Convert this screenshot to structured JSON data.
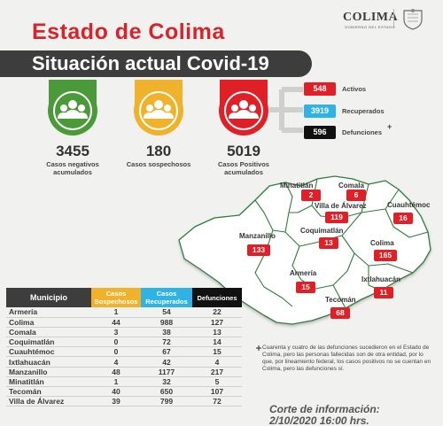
{
  "header": {
    "title": "Estado de Colima",
    "subtitle": "Situación actual Covid-19",
    "logo_text": "COLIMA",
    "logo_subtext": "GOBIERNO DEL ESTADO"
  },
  "summary": [
    {
      "value": "3455",
      "caption_l1": "Casos negativos",
      "caption_l2": "acumulados",
      "color": "#4a9a3a"
    },
    {
      "value": "180",
      "caption_l1": "Casos sospechosos",
      "caption_l2": "",
      "color": "#f0b22a"
    },
    {
      "value": "5019",
      "caption_l1": "Casos Positivos",
      "caption_l2": "acumulados",
      "color": "#e01f26"
    }
  ],
  "positive_breakdown": [
    {
      "value": "548",
      "label": "Activos",
      "color": "#e01f26"
    },
    {
      "value": "3919",
      "label": "Recuperados",
      "color": "#2fb3e4"
    },
    {
      "value": "596",
      "label": "Defunciones",
      "color": "#111111"
    }
  ],
  "defunciones_mark": "+",
  "map_labels": [
    {
      "name": "Minatitlán",
      "value": "2"
    },
    {
      "name": "Comala",
      "value": "6"
    },
    {
      "name": "Villa de Álvarez",
      "value": "119"
    },
    {
      "name": "Cuauhtémoc",
      "value": "16"
    },
    {
      "name": "Manzanillo",
      "value": "133"
    },
    {
      "name": "Coquimatlán",
      "value": "13"
    },
    {
      "name": "Colima",
      "value": "165"
    },
    {
      "name": "Armería",
      "value": "15"
    },
    {
      "name": "Ixtlahuacán",
      "value": "11"
    },
    {
      "name": "Tecomán",
      "value": "68"
    }
  ],
  "table": {
    "headers": [
      "Municipio",
      "Casos Sospechosos",
      "Casos Recuperados",
      "Defunciones"
    ],
    "rows": [
      [
        "Armería",
        "1",
        "54",
        "22"
      ],
      [
        "Colima",
        "44",
        "988",
        "127"
      ],
      [
        "Comala",
        "3",
        "38",
        "13"
      ],
      [
        "Coquimatlán",
        "0",
        "72",
        "14"
      ],
      [
        "Cuauhtémoc",
        "0",
        "67",
        "15"
      ],
      [
        "Ixtlahuacán",
        "4",
        "42",
        "4"
      ],
      [
        "Manzanillo",
        "48",
        "1177",
        "217"
      ],
      [
        "Minatitlán",
        "1",
        "32",
        "5"
      ],
      [
        "Tecomán",
        "40",
        "650",
        "107"
      ],
      [
        "Villa de Álvarez",
        "39",
        "799",
        "72"
      ]
    ]
  },
  "note": "Cuarenta y cuatro de las defunciones sucedieron en el Estado de Colima, pero las personas fallecidas son de otra entidad, por lo que, por lineamiento federal, los casos positivos no se cuentan en Colima, pero las defunciones sí.",
  "note_mark": "+",
  "corte": {
    "line1": "Corte de información:",
    "line2": "2/10/2020 16:00 hrs."
  }
}
